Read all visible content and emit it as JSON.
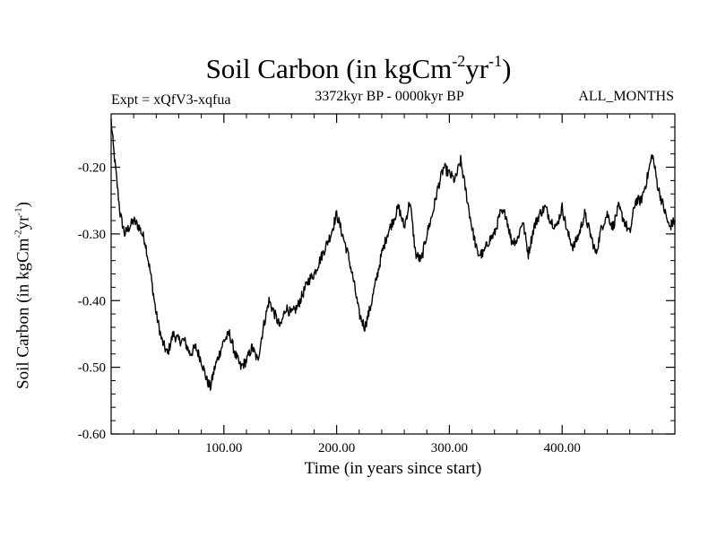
{
  "chart_data": {
    "type": "line",
    "title_main": "Soil Carbon (in kgCm",
    "title_sup1": "-2",
    "title_mid": "yr",
    "title_sup2": "-1",
    "title_end": ")",
    "subtitle_left": "Expt = xQfV3-xqfua",
    "subtitle_center": "3372kyr BP - 0000kyr BP",
    "subtitle_right": "ALL_MONTHS",
    "xlabel": "Time (in years since start)",
    "ylabel_main": "Soil Carbon (in kgCm",
    "ylabel_sup1": "-2",
    "ylabel_mid": "yr",
    "ylabel_sup2": "-1",
    "ylabel_end": ")",
    "xlim": [
      0,
      500
    ],
    "ylim": [
      -0.6,
      -0.12
    ],
    "xticks": [
      100,
      200,
      300,
      400
    ],
    "xtick_labels": [
      "100.00",
      "200.00",
      "300.00",
      "400.00"
    ],
    "yticks": [
      -0.6,
      -0.5,
      -0.4,
      -0.3,
      -0.2
    ],
    "ytick_labels": [
      "-0.60",
      "-0.50",
      "-0.40",
      "-0.30",
      "-0.20"
    ],
    "series": [
      {
        "name": "Soil Carbon",
        "color": "#000000",
        "x": [
          0,
          2,
          5,
          8,
          12,
          16,
          20,
          25,
          30,
          35,
          40,
          45,
          50,
          55,
          60,
          65,
          70,
          75,
          80,
          85,
          88,
          92,
          96,
          100,
          105,
          110,
          115,
          120,
          125,
          130,
          135,
          140,
          145,
          150,
          155,
          160,
          165,
          170,
          175,
          180,
          185,
          190,
          195,
          200,
          205,
          210,
          215,
          220,
          225,
          230,
          235,
          240,
          245,
          250,
          255,
          260,
          265,
          270,
          275,
          280,
          285,
          290,
          295,
          300,
          305,
          310,
          315,
          320,
          325,
          330,
          335,
          340,
          345,
          350,
          355,
          360,
          365,
          370,
          375,
          380,
          385,
          390,
          395,
          400,
          405,
          410,
          415,
          420,
          425,
          430,
          435,
          440,
          445,
          450,
          455,
          460,
          465,
          470,
          475,
          480,
          485,
          490,
          495,
          500
        ],
        "y": [
          -0.13,
          -0.17,
          -0.22,
          -0.27,
          -0.3,
          -0.29,
          -0.28,
          -0.29,
          -0.31,
          -0.36,
          -0.42,
          -0.46,
          -0.48,
          -0.45,
          -0.46,
          -0.46,
          -0.48,
          -0.47,
          -0.49,
          -0.52,
          -0.53,
          -0.5,
          -0.48,
          -0.46,
          -0.45,
          -0.48,
          -0.5,
          -0.49,
          -0.47,
          -0.49,
          -0.44,
          -0.4,
          -0.42,
          -0.44,
          -0.41,
          -0.42,
          -0.41,
          -0.39,
          -0.37,
          -0.36,
          -0.34,
          -0.32,
          -0.3,
          -0.27,
          -0.3,
          -0.33,
          -0.37,
          -0.42,
          -0.44,
          -0.41,
          -0.37,
          -0.33,
          -0.3,
          -0.28,
          -0.26,
          -0.29,
          -0.25,
          -0.33,
          -0.34,
          -0.3,
          -0.27,
          -0.23,
          -0.2,
          -0.21,
          -0.22,
          -0.19,
          -0.24,
          -0.29,
          -0.33,
          -0.33,
          -0.31,
          -0.3,
          -0.27,
          -0.27,
          -0.31,
          -0.31,
          -0.28,
          -0.33,
          -0.29,
          -0.27,
          -0.26,
          -0.28,
          -0.29,
          -0.26,
          -0.3,
          -0.32,
          -0.3,
          -0.27,
          -0.3,
          -0.33,
          -0.29,
          -0.27,
          -0.29,
          -0.26,
          -0.28,
          -0.3,
          -0.25,
          -0.25,
          -0.22,
          -0.18,
          -0.23,
          -0.26,
          -0.29,
          -0.28
        ]
      }
    ]
  }
}
